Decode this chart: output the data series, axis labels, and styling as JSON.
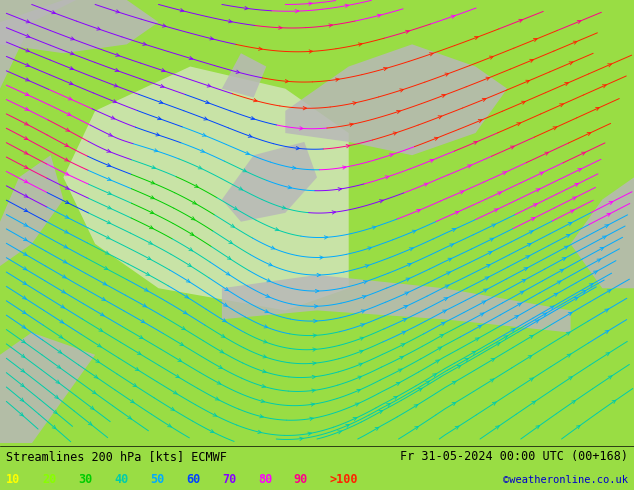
{
  "title_left": "Streamlines 200 hPa [kts] ECMWF",
  "title_right": "Fr 31-05-2024 00:00 UTC (00+168)",
  "credit": "©weatheronline.co.uk",
  "legend_values": [
    "10",
    "20",
    "30",
    "40",
    "50",
    "60",
    "70",
    "80",
    "90",
    ">100"
  ],
  "legend_colors": [
    "#ffff00",
    "#88ff00",
    "#00cc00",
    "#00ccaa",
    "#00aaff",
    "#0044ff",
    "#8800ff",
    "#ff00ff",
    "#ff0088",
    "#ff2200"
  ],
  "bg_color": "#99dd44",
  "bottom_bar_color": "#ffffff",
  "title_color": "#000000",
  "figsize": [
    6.34,
    4.9
  ],
  "dpi": 100,
  "n_streamlines": 35,
  "speed_thresholds": [
    10,
    20,
    30,
    40,
    50,
    60,
    70,
    80,
    90,
    200
  ],
  "speed_color_list": [
    "#ffff00",
    "#88ff00",
    "#00cc00",
    "#00ccaa",
    "#00aaff",
    "#0044ff",
    "#8800ff",
    "#ff00ff",
    "#ff0088",
    "#ff2200"
  ]
}
